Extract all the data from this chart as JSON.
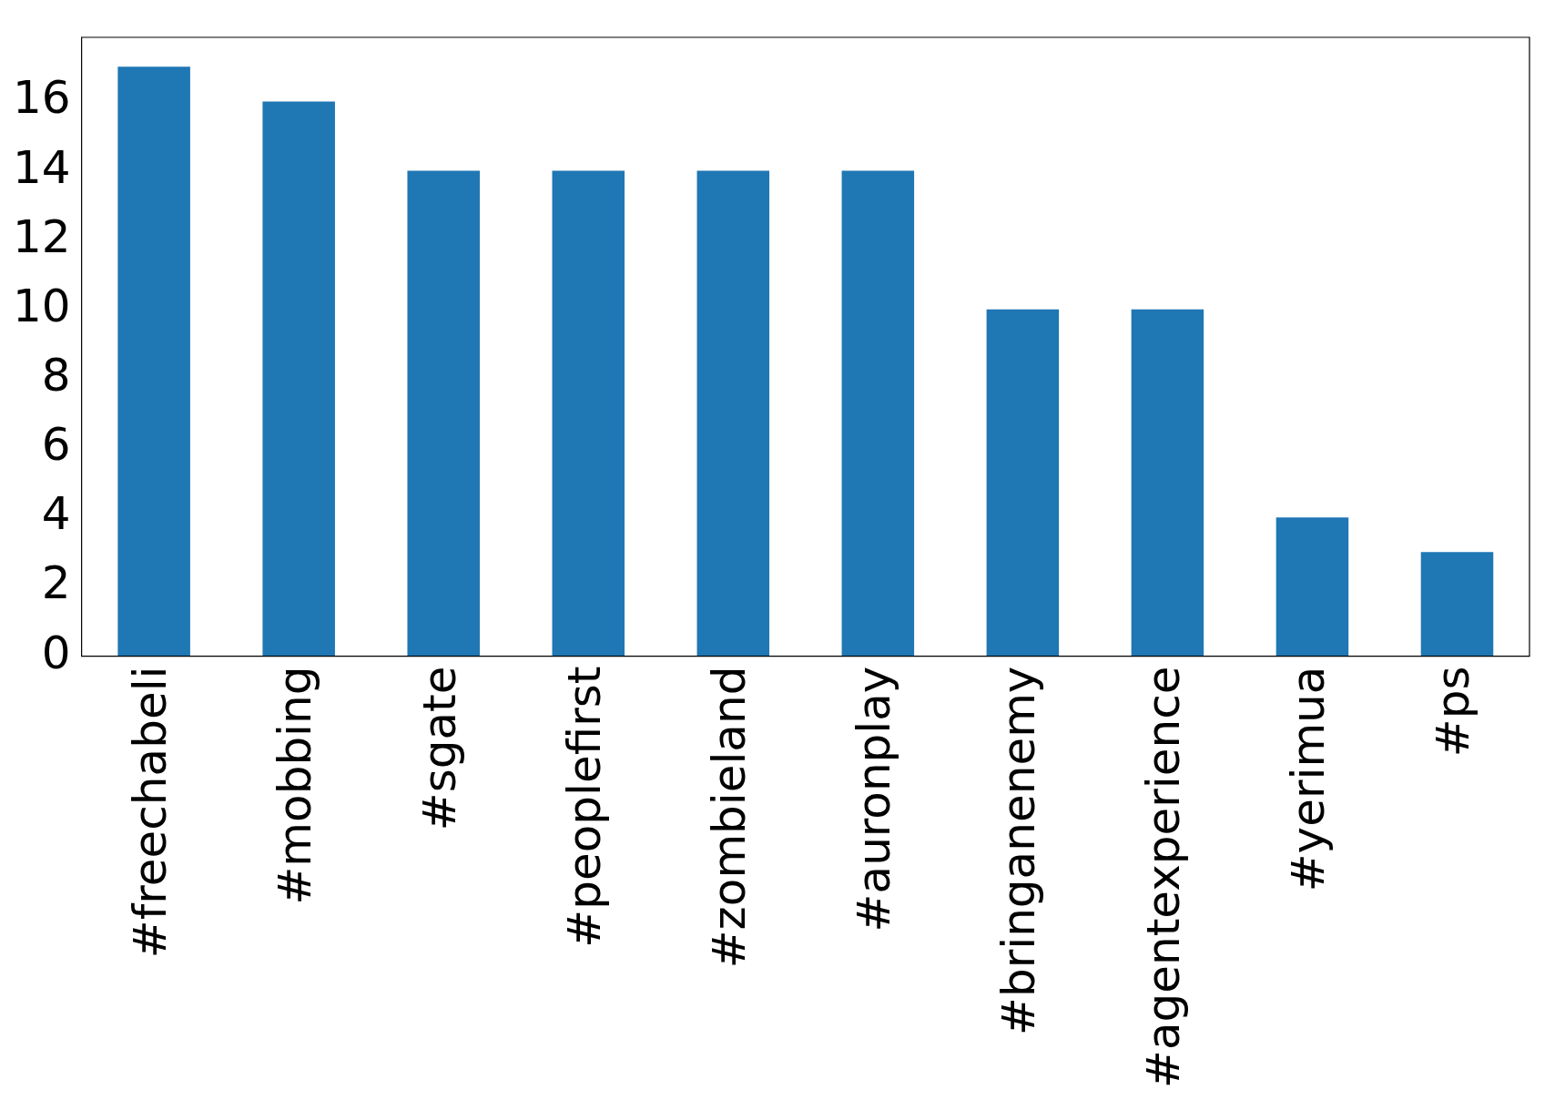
{
  "chart_data": {
    "type": "bar",
    "categories": [
      "#freechabeli",
      "#mobbing",
      "#sgate",
      "#peoplefirst",
      "#zombieland",
      "#auronplay",
      "#bringanenemy",
      "#agentexperience",
      "#yerimua",
      "#ps"
    ],
    "values": [
      17,
      16,
      14,
      14,
      14,
      14,
      10,
      10,
      4,
      3
    ],
    "color": "#1f77b4",
    "ylim": [
      0,
      17.85
    ],
    "yticks": [
      0,
      2,
      4,
      6,
      8,
      10,
      12,
      14,
      16
    ],
    "grid": false,
    "legend": false
  }
}
